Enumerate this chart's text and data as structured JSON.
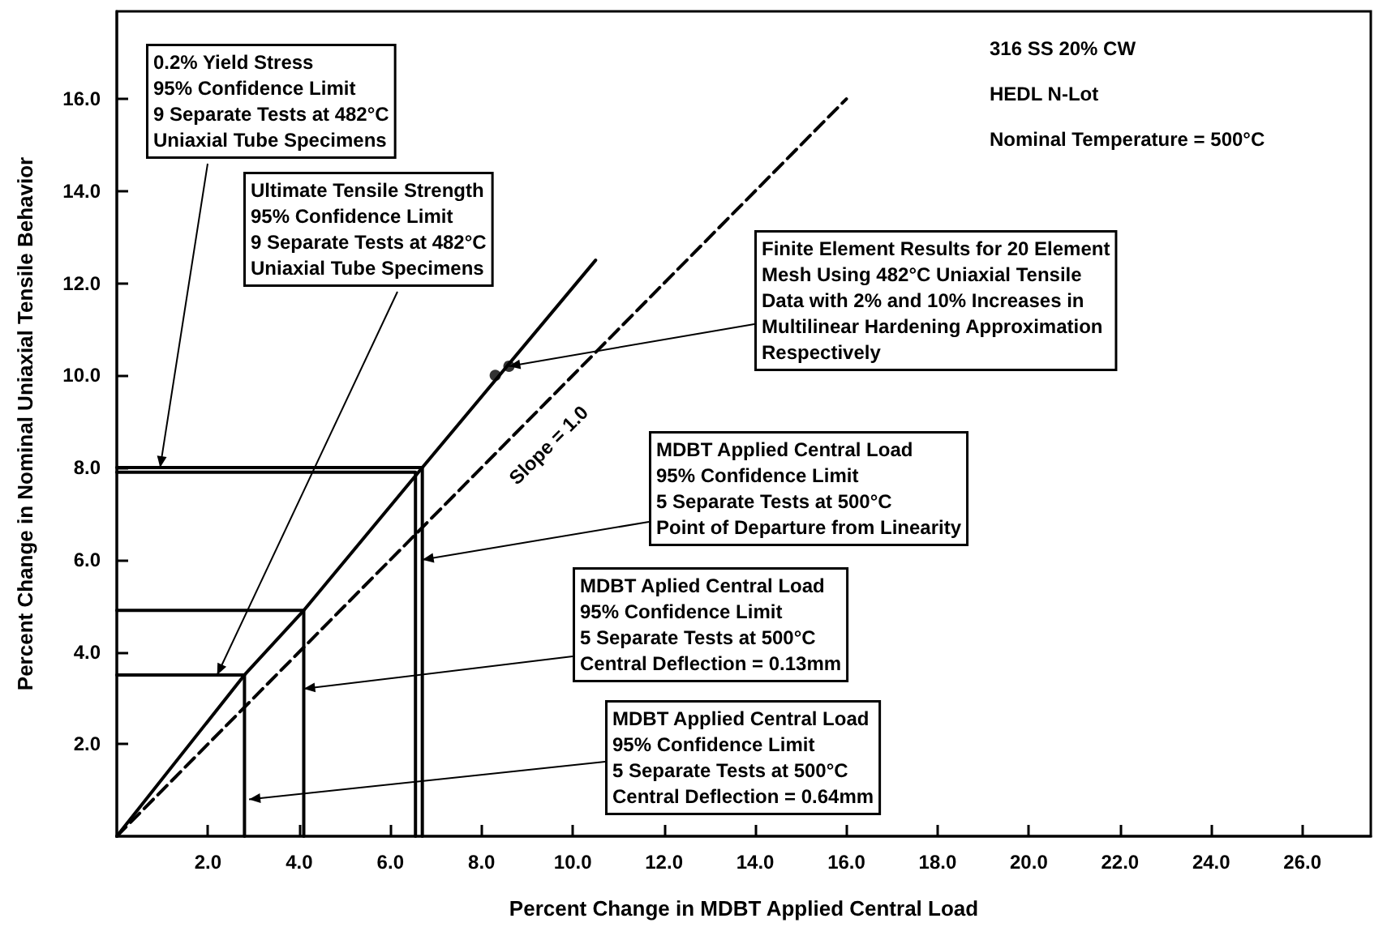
{
  "chart_data": {
    "type": "line",
    "xlabel": "Percent Change in MDBT Applied Central Load",
    "ylabel": "Percent Change in Nominal Uniaxial Tensile Behavior",
    "xlim": [
      0,
      27.5
    ],
    "xticks": [
      {
        "value": 2,
        "label": "2.0"
      },
      {
        "value": 4,
        "label": "4.0"
      },
      {
        "value": 6,
        "label": "6.0"
      },
      {
        "value": 8,
        "label": "8.0"
      },
      {
        "value": 10,
        "label": "10.0"
      },
      {
        "value": 12,
        "label": "12.0"
      },
      {
        "value": 14,
        "label": "14.0"
      },
      {
        "value": 16,
        "label": "16.0"
      },
      {
        "value": 18,
        "label": "18.0"
      },
      {
        "value": 20,
        "label": "20.0"
      },
      {
        "value": 22,
        "label": "22.0"
      },
      {
        "value": 24,
        "label": "24.0"
      },
      {
        "value": 26,
        "label": "26.0"
      }
    ],
    "ylim": [
      0,
      17.9
    ],
    "yticks": [
      {
        "value": 2,
        "label": "2.0"
      },
      {
        "value": 4,
        "label": "4.0"
      },
      {
        "value": 6,
        "label": "6.0"
      },
      {
        "value": 8,
        "label": "8.0"
      },
      {
        "value": 10,
        "label": "10.0"
      },
      {
        "value": 12,
        "label": "12.0"
      },
      {
        "value": 14,
        "label": "14.0"
      },
      {
        "value": 16,
        "label": "16.0"
      }
    ],
    "grid": false,
    "marker": "none",
    "series": [
      {
        "color": "#000000",
        "x": [
          0,
          2.8,
          4.1,
          6.7,
          10.5
        ],
        "values": [
          0,
          3.5,
          4.9,
          8.0,
          12.5
        ]
      },
      {
        "color": "#000000",
        "line_style": "dashed",
        "x": [
          0,
          16
        ],
        "values": [
          0,
          16
        ]
      },
      {
        "color": "#000000",
        "x": [
          0,
          6.7,
          6.7
        ],
        "values": [
          8.0,
          8.0,
          0
        ]
      },
      {
        "color": "#000000",
        "x": [
          0,
          6.55,
          6.55
        ],
        "values": [
          7.9,
          7.9,
          0
        ]
      },
      {
        "color": "#000000",
        "x": [
          0,
          4.1,
          4.1
        ],
        "values": [
          4.9,
          4.9,
          0
        ]
      },
      {
        "color": "#000000",
        "x": [
          0,
          2.8,
          2.8
        ],
        "values": [
          3.5,
          3.5,
          0
        ]
      },
      {
        "type": "scatter",
        "color": "#000000",
        "marker": "circle",
        "x": [
          8.3,
          8.6
        ],
        "values": [
          10.0,
          10.2
        ]
      }
    ],
    "annotations": [
      "316 SS 20% CW",
      "HEDL N-Lot",
      "Nominal Temperature = 500°C",
      {
        "text": "0.2% Yield Stress\n95% Confidence Limit\n9 Separate Tests at 482°C\nUniaxial Tube Specimens",
        "x": 0.95,
        "y": 8.0
      },
      {
        "text": "Ultimate Tensile Strength\n95% Confidence Limit\n9 Separate Tests at 482°C\nUniaxial Tube Specimens",
        "x": 2.2,
        "y": 3.5
      },
      {
        "text": "Finite Element Results for 20 Element\nMesh Using 482°C Uniaxial Tensile\nData with 2% and 10% Increases in\nMultilinear Hardening Approximation\nRespectively",
        "x": 8.6,
        "y": 10.2
      },
      {
        "text": "MDBT Applied Central Load\n95% Confidence Limit\n5 Separate Tests at 500°C\nPoint of Departure from Linearity",
        "x": 6.7,
        "y": 6.0
      },
      {
        "text": "MDBT Aplied Central Load\n95% Confidence Limit\n5 Separate Tests at 500°C\nCentral Deflection = 0.13mm",
        "x": 4.1,
        "y": 3.2
      },
      {
        "text": "MDBT Applied Central Load\n95% Confidence Limit\n5 Separate Tests at 500°C\nCentral Deflection = 0.64mm",
        "x": 2.9,
        "y": 0.8
      },
      {
        "text": "Slope = 1.0",
        "x": 9.4,
        "y": 9.4
      }
    ]
  }
}
